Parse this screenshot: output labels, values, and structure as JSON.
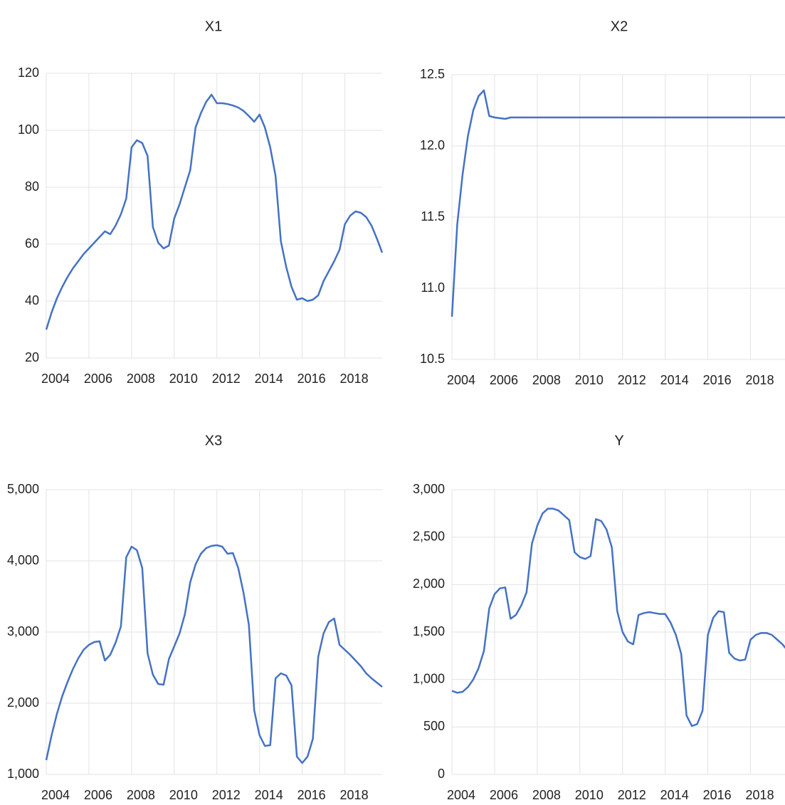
{
  "chart_data": [
    {
      "type": "line",
      "title": "X1",
      "x": [
        2004,
        2004.25,
        2004.5,
        2004.75,
        2005,
        2005.25,
        2005.5,
        2005.75,
        2006,
        2006.25,
        2006.5,
        2006.75,
        2007,
        2007.25,
        2007.5,
        2007.75,
        2008,
        2008.25,
        2008.5,
        2008.75,
        2009,
        2009.25,
        2009.5,
        2009.75,
        2010,
        2010.25,
        2010.5,
        2010.75,
        2011,
        2011.25,
        2011.5,
        2011.75,
        2012,
        2012.25,
        2012.5,
        2012.75,
        2013,
        2013.25,
        2013.5,
        2013.75,
        2014,
        2014.25,
        2014.5,
        2014.75,
        2015,
        2015.25,
        2015.5,
        2015.75,
        2016,
        2016.25,
        2016.5,
        2016.75,
        2017,
        2017.25,
        2017.5,
        2017.75,
        2018,
        2018.25,
        2018.5,
        2018.75,
        2019,
        2019.25,
        2019.5,
        2019.75
      ],
      "series": [
        {
          "color": "#4472c4",
          "values": [
            30,
            36,
            41,
            45,
            48.5,
            51.5,
            54,
            56.5,
            58.5,
            60.5,
            62.5,
            64.5,
            63.5,
            66.5,
            70.5,
            76,
            94,
            96.5,
            95.5,
            91,
            66,
            60.5,
            58.5,
            59.5,
            69,
            74,
            80,
            86,
            101,
            106,
            110,
            112.5,
            109.5,
            109.5,
            109.2,
            108.7,
            108,
            106.8,
            105,
            103,
            105.5,
            101,
            94,
            84,
            61,
            52,
            45,
            40.5,
            41,
            40,
            40.5,
            42,
            47,
            50.5,
            54,
            58,
            67,
            70,
            71.5,
            71,
            69.5,
            66.5,
            62,
            57
          ]
        }
      ],
      "xlim": [
        2004,
        2019.75
      ],
      "xticks": [
        2004,
        2006,
        2008,
        2010,
        2012,
        2014,
        2016,
        2018
      ],
      "ylim": [
        20,
        120
      ],
      "yticks": [
        20,
        40,
        60,
        80,
        100,
        120
      ],
      "grid": true
    },
    {
      "type": "line",
      "title": "X2",
      "x": [
        2004,
        2004.25,
        2004.5,
        2004.75,
        2005,
        2005.25,
        2005.5,
        2005.75,
        2006,
        2006.25,
        2006.5,
        2006.75,
        2007,
        2007.25,
        2007.5,
        2007.75,
        2008,
        2008.25,
        2008.5,
        2008.75,
        2009,
        2009.25,
        2009.5,
        2009.75,
        2010,
        2010.25,
        2010.5,
        2010.75,
        2011,
        2011.25,
        2011.5,
        2011.75,
        2012,
        2012.25,
        2012.5,
        2012.75,
        2013,
        2013.25,
        2013.5,
        2013.75,
        2014,
        2014.25,
        2014.5,
        2014.75,
        2015,
        2015.25,
        2015.5,
        2015.75,
        2016,
        2016.25,
        2016.5,
        2016.75,
        2017,
        2017.25,
        2017.5,
        2017.75,
        2018,
        2018.25,
        2018.5,
        2018.75,
        2019,
        2019.25,
        2019.5,
        2019.75
      ],
      "series": [
        {
          "color": "#4472c4",
          "values": [
            10.8,
            11.45,
            11.8,
            12.07,
            12.25,
            12.35,
            12.39,
            12.21,
            12.2,
            12.195,
            12.19,
            12.2,
            12.2,
            12.2,
            12.2,
            12.2,
            12.2,
            12.2,
            12.2,
            12.2,
            12.2,
            12.2,
            12.2,
            12.2,
            12.2,
            12.2,
            12.2,
            12.2,
            12.2,
            12.2,
            12.2,
            12.2,
            12.2,
            12.2,
            12.2,
            12.2,
            12.2,
            12.2,
            12.2,
            12.2,
            12.2,
            12.2,
            12.2,
            12.2,
            12.2,
            12.2,
            12.2,
            12.2,
            12.2,
            12.2,
            12.2,
            12.2,
            12.2,
            12.2,
            12.2,
            12.2,
            12.2,
            12.2,
            12.2,
            12.2,
            12.2,
            12.2,
            12.2,
            12.2
          ]
        }
      ],
      "xlim": [
        2004,
        2019.75
      ],
      "xticks": [
        2004,
        2006,
        2008,
        2010,
        2012,
        2014,
        2016,
        2018
      ],
      "ylim": [
        10.5,
        12.5
      ],
      "yticks": [
        10.5,
        {
          "value": 11,
          "label": "11.0"
        },
        11.5,
        {
          "value": 12,
          "label": "12.0"
        },
        12.5
      ],
      "grid": true
    },
    {
      "type": "line",
      "title": "X3",
      "x": [
        2004,
        2004.25,
        2004.5,
        2004.75,
        2005,
        2005.25,
        2005.5,
        2005.75,
        2006,
        2006.25,
        2006.5,
        2006.75,
        2007,
        2007.25,
        2007.5,
        2007.75,
        2008,
        2008.25,
        2008.5,
        2008.75,
        2009,
        2009.25,
        2009.5,
        2009.75,
        2010,
        2010.25,
        2010.5,
        2010.75,
        2011,
        2011.25,
        2011.5,
        2011.75,
        2012,
        2012.25,
        2012.5,
        2012.75,
        2013,
        2013.25,
        2013.5,
        2013.75,
        2014,
        2014.25,
        2014.5,
        2014.75,
        2015,
        2015.25,
        2015.5,
        2015.75,
        2016,
        2016.25,
        2016.5,
        2016.75,
        2017,
        2017.25,
        2017.5,
        2017.75,
        2018,
        2018.25,
        2018.5,
        2018.75,
        2019,
        2019.25,
        2019.5,
        2019.75
      ],
      "series": [
        {
          "color": "#4472c4",
          "values": [
            1200,
            1550,
            1850,
            2100,
            2300,
            2480,
            2630,
            2750,
            2820,
            2860,
            2870,
            2600,
            2680,
            2850,
            3080,
            4050,
            4200,
            4150,
            3900,
            2700,
            2400,
            2270,
            2260,
            2620,
            2800,
            2980,
            3250,
            3700,
            3950,
            4100,
            4180,
            4210,
            4220,
            4200,
            4100,
            4110,
            3900,
            3550,
            3100,
            1900,
            1550,
            1400,
            1410,
            2350,
            2420,
            2390,
            2250,
            1250,
            1160,
            1250,
            1500,
            2650,
            2980,
            3140,
            3190,
            2820,
            2750,
            2680,
            2600,
            2520,
            2420,
            2350,
            2290,
            2230
          ]
        }
      ],
      "xlim": [
        2004,
        2019.75
      ],
      "xticks": [
        2004,
        2006,
        2008,
        2010,
        2012,
        2014,
        2016,
        2018
      ],
      "ylim": [
        1000,
        5000
      ],
      "yticks": [
        {
          "value": 1000,
          "label": "1,000"
        },
        {
          "value": 2000,
          "label": "2,000"
        },
        {
          "value": 3000,
          "label": "3,000"
        },
        {
          "value": 4000,
          "label": "4,000"
        },
        {
          "value": 5000,
          "label": "5,000"
        }
      ],
      "grid": true
    },
    {
      "type": "line",
      "title": "Y",
      "x": [
        2004,
        2004.25,
        2004.5,
        2004.75,
        2005,
        2005.25,
        2005.5,
        2005.75,
        2006,
        2006.25,
        2006.5,
        2006.75,
        2007,
        2007.25,
        2007.5,
        2007.75,
        2008,
        2008.25,
        2008.5,
        2008.75,
        2009,
        2009.25,
        2009.5,
        2009.75,
        2010,
        2010.25,
        2010.5,
        2010.75,
        2011,
        2011.25,
        2011.5,
        2011.75,
        2012,
        2012.25,
        2012.5,
        2012.75,
        2013,
        2013.25,
        2013.5,
        2013.75,
        2014,
        2014.25,
        2014.5,
        2014.75,
        2015,
        2015.25,
        2015.5,
        2015.75,
        2016,
        2016.25,
        2016.5,
        2016.75,
        2017,
        2017.25,
        2017.5,
        2017.75,
        2018,
        2018.25,
        2018.5,
        2018.75,
        2019,
        2019.25,
        2019.5,
        2019.75
      ],
      "series": [
        {
          "color": "#4472c4",
          "values": [
            880,
            860,
            870,
            920,
            1000,
            1120,
            1300,
            1750,
            1900,
            1960,
            1970,
            1640,
            1680,
            1780,
            1920,
            2430,
            2620,
            2750,
            2800,
            2800,
            2780,
            2730,
            2680,
            2340,
            2290,
            2270,
            2300,
            2690,
            2670,
            2580,
            2390,
            1720,
            1500,
            1400,
            1370,
            1680,
            1700,
            1710,
            1700,
            1690,
            1690,
            1600,
            1470,
            1270,
            620,
            510,
            530,
            670,
            1470,
            1650,
            1720,
            1710,
            1280,
            1220,
            1200,
            1210,
            1420,
            1470,
            1490,
            1490,
            1470,
            1420,
            1370,
            1300
          ]
        }
      ],
      "xlim": [
        2004,
        2019.75
      ],
      "xticks": [
        2004,
        2006,
        2008,
        2010,
        2012,
        2014,
        2016,
        2018
      ],
      "ylim": [
        0,
        3000
      ],
      "yticks": [
        0,
        500,
        {
          "value": 1000,
          "label": "1,000"
        },
        {
          "value": 1500,
          "label": "1,500"
        },
        {
          "value": 2000,
          "label": "2,000"
        },
        {
          "value": 2500,
          "label": "2,500"
        },
        {
          "value": 3000,
          "label": "3,000"
        }
      ],
      "grid": true
    }
  ]
}
